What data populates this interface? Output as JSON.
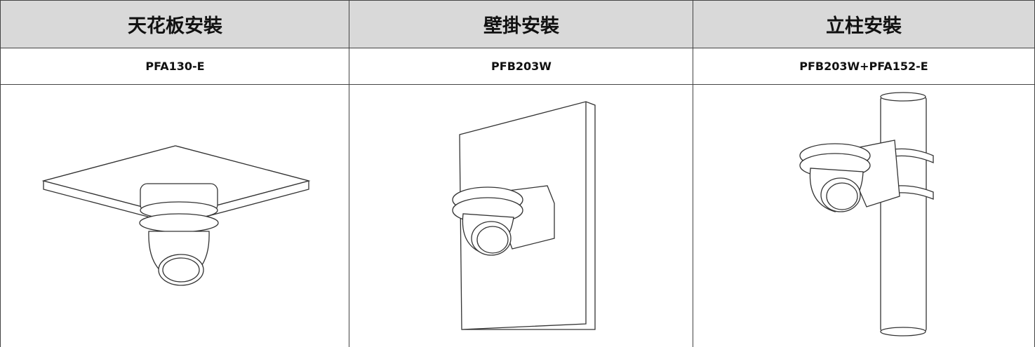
{
  "table": {
    "headers": [
      "天花板安裝",
      "壁掛安裝",
      "立柱安裝"
    ],
    "models": [
      "PFA130-E",
      "PFB203W",
      "PFB203W+PFA152-E"
    ]
  }
}
